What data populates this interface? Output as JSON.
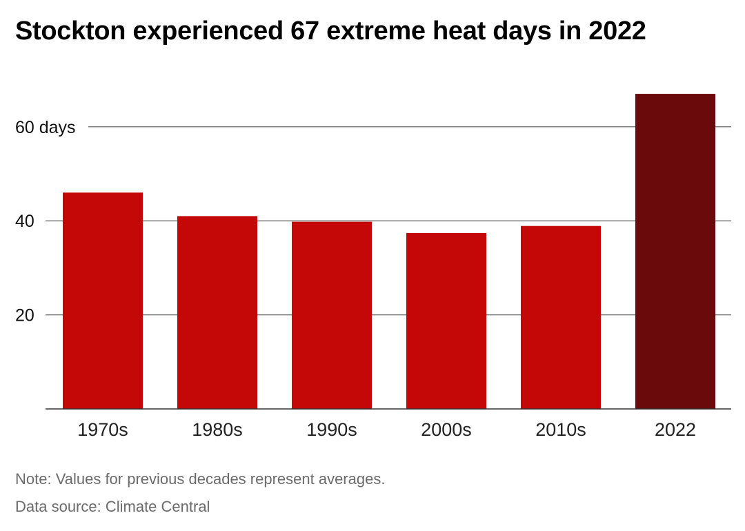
{
  "title": "Stockton experienced 67 extreme heat days in 2022",
  "footer": {
    "note": "Note: Values for previous decades represent averages.",
    "source": "Data source: Climate Central"
  },
  "colors": {
    "bar": "#c40808",
    "highlight": "#6b0a0b",
    "grid": "#555555",
    "tick_text": "#222222"
  },
  "chart_data": {
    "type": "bar",
    "categories": [
      "1970s",
      "1980s",
      "1990s",
      "2000s",
      "2010s",
      "2022"
    ],
    "values": [
      46,
      41,
      39.8,
      37.4,
      38.9,
      67
    ],
    "highlight_category": "2022",
    "y_ticks": [
      20,
      40,
      60
    ],
    "y_tick_labels": [
      "20",
      "40",
      "60 days"
    ],
    "ylim": [
      0,
      67
    ],
    "grid": true,
    "title": "Stockton experienced 67 extreme heat days in 2022",
    "xlabel": "",
    "ylabel": ""
  }
}
